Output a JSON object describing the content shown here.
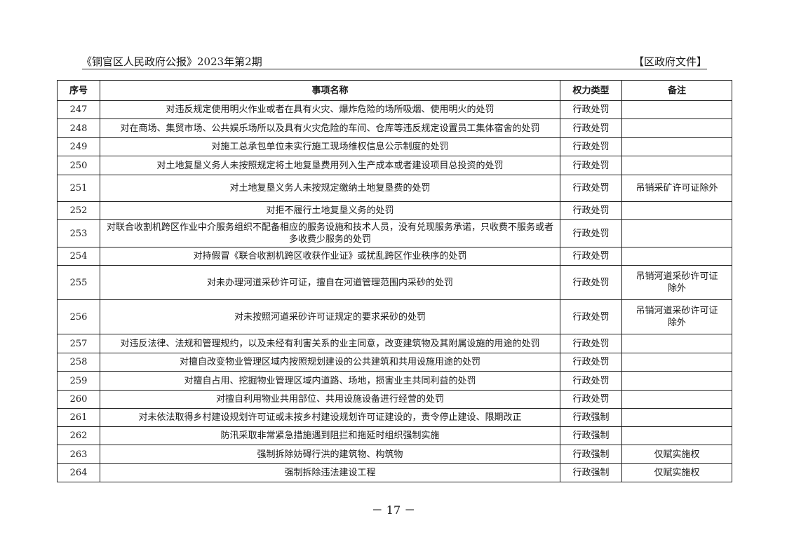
{
  "header": {
    "left": "《铜官区人民政府公报》2023年第2期",
    "right": "【区政府文件】"
  },
  "table": {
    "columns": [
      "序号",
      "事项名称",
      "权力类型",
      "备注"
    ],
    "rows": [
      {
        "no": "247",
        "name": "对违反规定使用明火作业或者在具有火灾、爆炸危险的场所吸烟、使用明火的处罚",
        "type": "行政处罚",
        "note": ""
      },
      {
        "no": "248",
        "name": "对在商场、集贸市场、公共娱乐场所以及具有火灾危险的车间、仓库等违反规定设置员工集体宿舍的处罚",
        "type": "行政处罚",
        "note": ""
      },
      {
        "no": "249",
        "name": "对施工总承包单位未实行施工现场维权信息公示制度的处罚",
        "type": "行政处罚",
        "note": ""
      },
      {
        "no": "250",
        "name": "对土地复垦义务人未按照规定将土地复垦费用列入生产成本或者建设项目总投资的处罚",
        "type": "行政处罚",
        "note": ""
      },
      {
        "no": "251",
        "name": "对土地复垦义务人未按规定缴纳土地复垦费的处罚",
        "type": "行政处罚",
        "note": "吊销采矿许可证除外"
      },
      {
        "no": "252",
        "name": "对拒不履行土地复垦义务的处罚",
        "type": "行政处罚",
        "note": ""
      },
      {
        "no": "253",
        "name": "对联合收割机跨区作业中介服务组织不配备相应的服务设施和技术人员，没有兑现服务承诺，只收费不服务或者多收费少服务的处罚",
        "type": "行政处罚",
        "note": ""
      },
      {
        "no": "254",
        "name": "对持假冒《联合收割机跨区收获作业证》或扰乱跨区作业秩序的处罚",
        "type": "行政处罚",
        "note": ""
      },
      {
        "no": "255",
        "name": "对未办理河道采砂许可证，擅自在河道管理范围内采砂的处罚",
        "type": "行政处罚",
        "note": "吊销河道采砂许可证除外"
      },
      {
        "no": "256",
        "name": "对未按照河道采砂许可证规定的要求采砂的处罚",
        "type": "行政处罚",
        "note": "吊销河道采砂许可证除外"
      },
      {
        "no": "257",
        "name": "对违反法律、法规和管理规约，以及未经有利害关系的业主同意，改变建筑物及其附属设施的用途的处罚",
        "type": "行政处罚",
        "note": ""
      },
      {
        "no": "258",
        "name": "对擅自改变物业管理区域内按照规划建设的公共建筑和共用设施用途的处罚",
        "type": "行政处罚",
        "note": ""
      },
      {
        "no": "259",
        "name": "对擅自占用、挖掘物业管理区域内道路、场地，损害业主共同利益的处罚",
        "type": "行政处罚",
        "note": ""
      },
      {
        "no": "260",
        "name": "对擅自利用物业共用部位、共用设施设备进行经营的处罚",
        "type": "行政处罚",
        "note": ""
      },
      {
        "no": "261",
        "name": "对未依法取得乡村建设规划许可证或未按乡村建设规划许可证建设的，责令停止建设、限期改正",
        "type": "行政强制",
        "note": ""
      },
      {
        "no": "262",
        "name": "防汛采取非常紧急措施遇到阻拦和拖延时组织强制实施",
        "type": "行政强制",
        "note": ""
      },
      {
        "no": "263",
        "name": "强制拆除妨碍行洪的建筑物、构筑物",
        "type": "行政强制",
        "note": "仅赋实施权"
      },
      {
        "no": "264",
        "name": "强制拆除违法建设工程",
        "type": "行政强制",
        "note": "仅赋实施权"
      }
    ]
  },
  "footer": {
    "page_number": "－ 17 －"
  }
}
